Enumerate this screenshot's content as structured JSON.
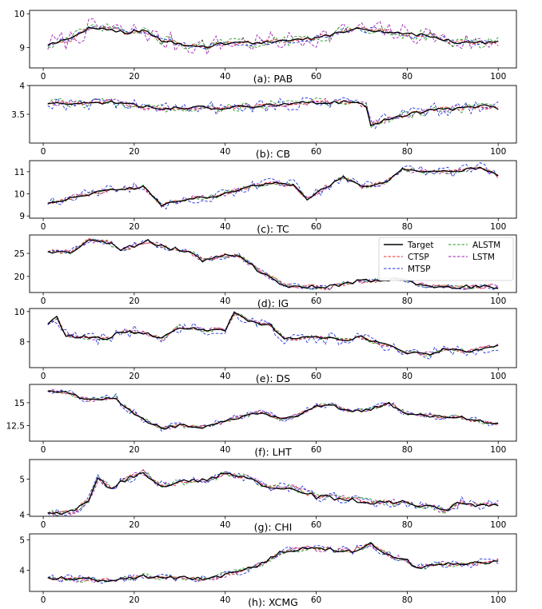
{
  "figure": {
    "legend": [
      {
        "name": "Target",
        "color": "#000000",
        "dash": "solid"
      },
      {
        "name": "CTSP",
        "color": "#e8302a",
        "dash": "dashed"
      },
      {
        "name": "MTSP",
        "color": "#2233dd",
        "dash": "dashed"
      },
      {
        "name": "ALSTM",
        "color": "#2a9a2a",
        "dash": "dashed"
      },
      {
        "name": "LSTM",
        "color": "#a020b0",
        "dash": "dashed"
      }
    ]
  },
  "chart_data": [
    {
      "type": "line",
      "title": "(a): PAB",
      "x_range": [
        1,
        100
      ],
      "xlim": [
        -3,
        104
      ],
      "xticks": [
        0,
        20,
        40,
        60,
        80,
        100
      ],
      "ylim": [
        8.4,
        10.1
      ],
      "yticks": [
        9,
        10
      ],
      "anchors": [
        [
          1,
          9.1
        ],
        [
          6,
          9.25
        ],
        [
          10,
          9.55
        ],
        [
          13,
          9.6
        ],
        [
          18,
          9.45
        ],
        [
          22,
          9.5
        ],
        [
          26,
          9.2
        ],
        [
          31,
          9.1
        ],
        [
          36,
          9.05
        ],
        [
          42,
          9.15
        ],
        [
          48,
          9.15
        ],
        [
          55,
          9.2
        ],
        [
          62,
          9.35
        ],
        [
          68,
          9.55
        ],
        [
          74,
          9.5
        ],
        [
          80,
          9.4
        ],
        [
          86,
          9.35
        ],
        [
          90,
          9.15
        ],
        [
          95,
          9.15
        ],
        [
          100,
          9.15
        ]
      ],
      "noise": {
        "target": 0.05,
        "CTSP": 0.07,
        "MTSP": 0.1,
        "ALSTM": 0.16,
        "LSTM": 0.3
      }
    },
    {
      "type": "line",
      "title": "(b): CB",
      "x_range": [
        1,
        100
      ],
      "xlim": [
        -3,
        104
      ],
      "xticks": [
        0,
        20,
        40,
        60,
        80,
        100
      ],
      "ylim": [
        3.0,
        4.0
      ],
      "yticks": [
        3.5,
        4.0
      ],
      "anchors": [
        [
          1,
          3.7
        ],
        [
          8,
          3.68
        ],
        [
          15,
          3.72
        ],
        [
          20,
          3.65
        ],
        [
          26,
          3.6
        ],
        [
          32,
          3.62
        ],
        [
          40,
          3.6
        ],
        [
          46,
          3.65
        ],
        [
          55,
          3.68
        ],
        [
          62,
          3.72
        ],
        [
          68,
          3.7
        ],
        [
          71,
          3.65
        ],
        [
          72,
          3.32
        ],
        [
          75,
          3.4
        ],
        [
          80,
          3.5
        ],
        [
          86,
          3.58
        ],
        [
          92,
          3.6
        ],
        [
          97,
          3.65
        ],
        [
          100,
          3.6
        ]
      ],
      "noise": {
        "target": 0.03,
        "CTSP": 0.04,
        "MTSP": 0.12,
        "ALSTM": 0.08,
        "LSTM": 0.06
      }
    },
    {
      "type": "line",
      "title": "(c): TC",
      "x_range": [
        1,
        100
      ],
      "xlim": [
        -3,
        104
      ],
      "xticks": [
        0,
        20,
        40,
        60,
        80,
        100
      ],
      "ylim": [
        8.9,
        11.5
      ],
      "yticks": [
        9,
        10,
        11
      ],
      "anchors": [
        [
          1,
          9.6
        ],
        [
          8,
          9.9
        ],
        [
          14,
          10.15
        ],
        [
          22,
          10.3
        ],
        [
          26,
          9.5
        ],
        [
          32,
          9.8
        ],
        [
          38,
          9.9
        ],
        [
          43,
          10.2
        ],
        [
          50,
          10.5
        ],
        [
          55,
          10.4
        ],
        [
          58,
          9.75
        ],
        [
          62,
          10.3
        ],
        [
          66,
          10.75
        ],
        [
          70,
          10.3
        ],
        [
          75,
          10.5
        ],
        [
          79,
          11.1
        ],
        [
          84,
          11.0
        ],
        [
          90,
          11.0
        ],
        [
          96,
          11.2
        ],
        [
          100,
          10.8
        ]
      ],
      "noise": {
        "target": 0.06,
        "CTSP": 0.08,
        "MTSP": 0.25,
        "ALSTM": 0.1,
        "LSTM": 0.12
      }
    },
    {
      "type": "line",
      "title": "(d): IG",
      "x_range": [
        1,
        100
      ],
      "xlim": [
        -3,
        104
      ],
      "xticks": [
        0,
        20,
        40,
        60,
        80,
        100
      ],
      "ylim": [
        16.5,
        29.0
      ],
      "yticks": [
        20,
        25
      ],
      "anchors": [
        [
          1,
          25.5
        ],
        [
          6,
          25.2
        ],
        [
          10,
          27.8
        ],
        [
          14,
          27.5
        ],
        [
          17,
          25.8
        ],
        [
          23,
          27.6
        ],
        [
          27,
          26.2
        ],
        [
          32,
          25.6
        ],
        [
          35,
          23.5
        ],
        [
          40,
          24.5
        ],
        [
          43,
          24.5
        ],
        [
          47,
          21.5
        ],
        [
          50,
          19.8
        ],
        [
          53,
          18.0
        ],
        [
          58,
          17.8
        ],
        [
          62,
          17.5
        ],
        [
          68,
          18.8
        ],
        [
          74,
          19.2
        ],
        [
          78,
          19.5
        ],
        [
          84,
          18.0
        ],
        [
          90,
          17.7
        ],
        [
          96,
          17.8
        ],
        [
          100,
          17.8
        ]
      ],
      "noise": {
        "target": 0.4,
        "CTSP": 0.5,
        "MTSP": 0.7,
        "ALSTM": 0.5,
        "LSTM": 0.5
      }
    },
    {
      "type": "line",
      "title": "(e): DS",
      "x_range": [
        1,
        100
      ],
      "xlim": [
        -3,
        104
      ],
      "xticks": [
        0,
        20,
        40,
        60,
        80,
        100
      ],
      "ylim": [
        6.3,
        10.2
      ],
      "yticks": [
        8,
        10
      ],
      "anchors": [
        [
          1,
          9.2
        ],
        [
          3,
          9.6
        ],
        [
          5,
          8.4
        ],
        [
          10,
          8.3
        ],
        [
          14,
          8.2
        ],
        [
          17,
          8.7
        ],
        [
          22,
          8.6
        ],
        [
          26,
          8.2
        ],
        [
          30,
          9.0
        ],
        [
          34,
          8.8
        ],
        [
          40,
          8.8
        ],
        [
          42,
          9.9
        ],
        [
          46,
          9.3
        ],
        [
          50,
          9.1
        ],
        [
          53,
          8.2
        ],
        [
          60,
          8.3
        ],
        [
          66,
          8.1
        ],
        [
          70,
          8.3
        ],
        [
          74,
          7.9
        ],
        [
          80,
          7.3
        ],
        [
          85,
          7.2
        ],
        [
          88,
          7.5
        ],
        [
          94,
          7.4
        ],
        [
          100,
          7.8
        ]
      ],
      "noise": {
        "target": 0.1,
        "CTSP": 0.12,
        "MTSP": 0.45,
        "ALSTM": 0.15,
        "LSTM": 0.15
      }
    },
    {
      "type": "line",
      "title": "(f): LHT",
      "x_range": [
        1,
        100
      ],
      "xlim": [
        -3,
        104
      ],
      "xticks": [
        0,
        20,
        40,
        60,
        80,
        100
      ],
      "ylim": [
        10.8,
        17.0
      ],
      "yticks": [
        12.5,
        15.0
      ],
      "anchors": [
        [
          1,
          16.3
        ],
        [
          6,
          16.0
        ],
        [
          10,
          15.3
        ],
        [
          16,
          15.6
        ],
        [
          18,
          14.5
        ],
        [
          22,
          13.2
        ],
        [
          26,
          12.2
        ],
        [
          30,
          12.5
        ],
        [
          35,
          12.3
        ],
        [
          42,
          13.3
        ],
        [
          48,
          14.0
        ],
        [
          52,
          13.2
        ],
        [
          56,
          13.6
        ],
        [
          60,
          14.7
        ],
        [
          64,
          14.6
        ],
        [
          68,
          14.0
        ],
        [
          72,
          14.3
        ],
        [
          76,
          14.9
        ],
        [
          80,
          13.8
        ],
        [
          86,
          13.5
        ],
        [
          92,
          13.4
        ],
        [
          96,
          13.0
        ],
        [
          100,
          12.7
        ]
      ],
      "noise": {
        "target": 0.15,
        "CTSP": 0.2,
        "MTSP": 0.4,
        "ALSTM": 0.25,
        "LSTM": 0.25
      }
    },
    {
      "type": "line",
      "title": "(g): CHI",
      "x_range": [
        1,
        100
      ],
      "xlim": [
        -3,
        104
      ],
      "xticks": [
        0,
        20,
        40,
        60,
        80,
        100
      ],
      "ylim": [
        3.95,
        5.55
      ],
      "yticks": [
        4,
        5
      ],
      "anchors": [
        [
          1,
          4.05
        ],
        [
          4,
          4.02
        ],
        [
          7,
          4.1
        ],
        [
          10,
          4.4
        ],
        [
          12,
          5.0
        ],
        [
          15,
          4.75
        ],
        [
          19,
          5.05
        ],
        [
          22,
          5.2
        ],
        [
          26,
          4.8
        ],
        [
          30,
          4.9
        ],
        [
          36,
          5.0
        ],
        [
          40,
          5.15
        ],
        [
          45,
          5.05
        ],
        [
          50,
          4.75
        ],
        [
          55,
          4.75
        ],
        [
          60,
          4.5
        ],
        [
          66,
          4.45
        ],
        [
          72,
          4.35
        ],
        [
          78,
          4.35
        ],
        [
          84,
          4.25
        ],
        [
          88,
          4.1
        ],
        [
          92,
          4.35
        ],
        [
          96,
          4.25
        ],
        [
          100,
          4.3
        ]
      ],
      "noise": {
        "target": 0.06,
        "CTSP": 0.07,
        "MTSP": 0.15,
        "ALSTM": 0.1,
        "LSTM": 0.09
      }
    },
    {
      "type": "line",
      "title": "(h): XCMG",
      "x_range": [
        1,
        100
      ],
      "xlim": [
        -3,
        104
      ],
      "xticks": [
        0,
        20,
        40,
        60,
        80,
        100
      ],
      "ylim": [
        3.3,
        5.2
      ],
      "yticks": [
        4,
        5
      ],
      "anchors": [
        [
          1,
          3.75
        ],
        [
          8,
          3.7
        ],
        [
          15,
          3.65
        ],
        [
          22,
          3.8
        ],
        [
          30,
          3.75
        ],
        [
          36,
          3.7
        ],
        [
          40,
          3.85
        ],
        [
          44,
          4.0
        ],
        [
          48,
          4.2
        ],
        [
          52,
          4.6
        ],
        [
          58,
          4.75
        ],
        [
          62,
          4.7
        ],
        [
          68,
          4.65
        ],
        [
          72,
          4.85
        ],
        [
          76,
          4.5
        ],
        [
          80,
          4.3
        ],
        [
          82,
          4.05
        ],
        [
          86,
          4.2
        ],
        [
          92,
          4.2
        ],
        [
          100,
          4.3
        ]
      ],
      "noise": {
        "target": 0.06,
        "CTSP": 0.07,
        "MTSP": 0.14,
        "ALSTM": 0.1,
        "LSTM": 0.1
      }
    }
  ]
}
